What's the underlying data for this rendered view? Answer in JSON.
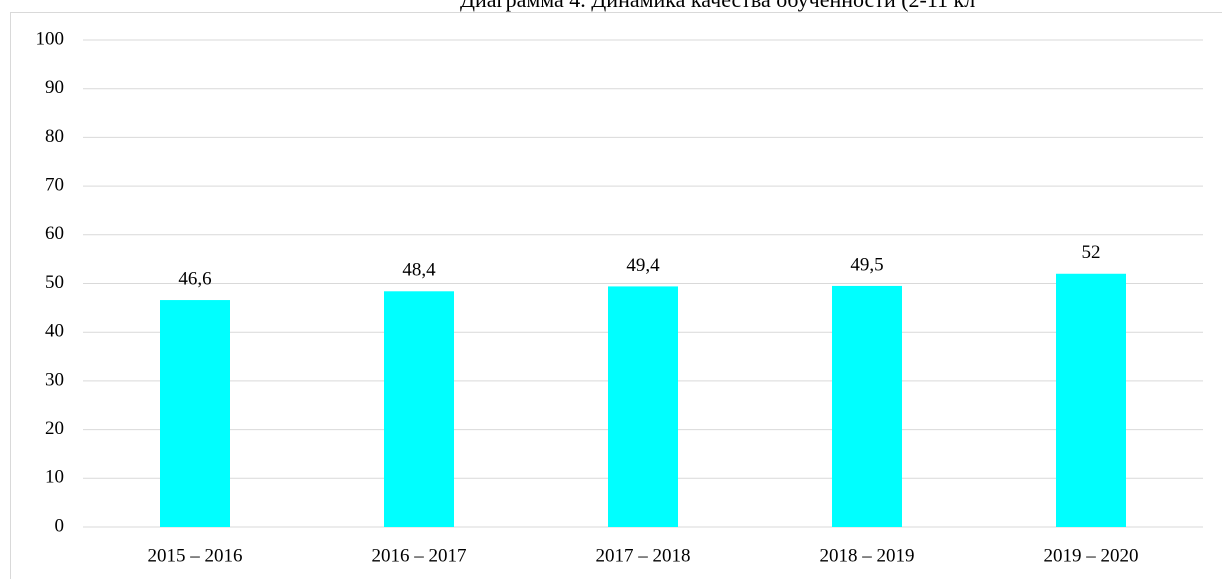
{
  "chart_data": {
    "type": "bar",
    "title": "Диаграмма 4. Динамика качества обученности (2-11 кл",
    "categories": [
      "2015 – 2016",
      "2016 – 2017",
      "2017 – 2018",
      "2018 – 2019",
      "2019 – 2020"
    ],
    "values": [
      46.6,
      48.4,
      49.4,
      49.5,
      52
    ],
    "value_labels": [
      "46,6",
      "48,4",
      "49,4",
      "49,5",
      "52"
    ],
    "color": "#00ffff",
    "ylim": [
      0,
      100
    ],
    "yticks": [
      0,
      10,
      20,
      30,
      40,
      50,
      60,
      70,
      80,
      90,
      100
    ],
    "grid": true
  }
}
